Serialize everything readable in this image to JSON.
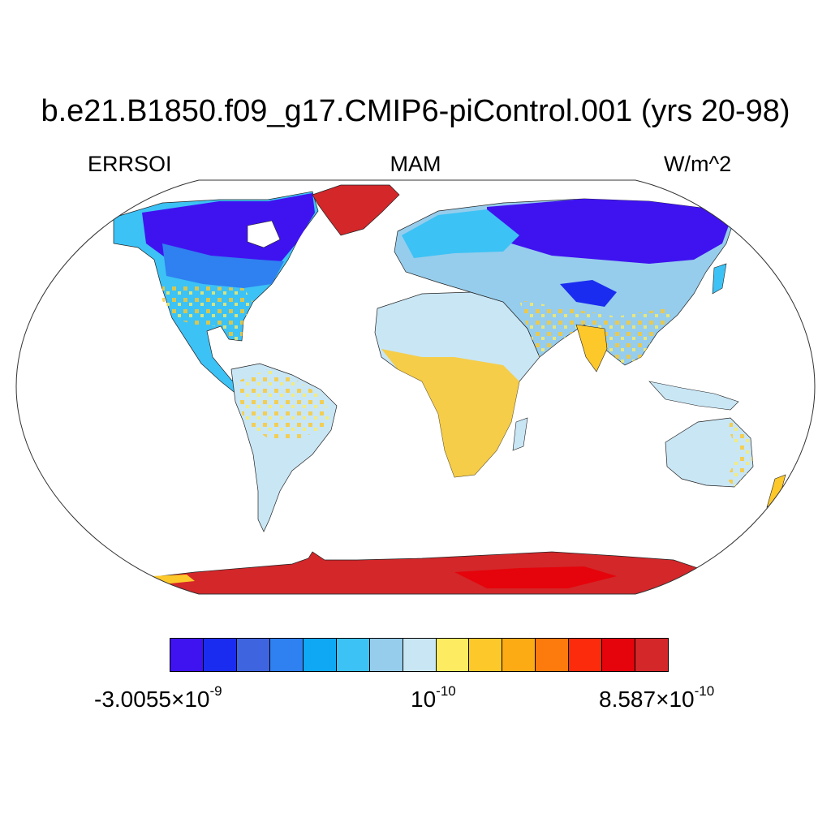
{
  "title": "b.e21.B1850.f09_g17.CMIP6-piControl.001 (yrs 20-98)",
  "variable": "ERRSOI",
  "season": "MAM",
  "units": "W/m^2",
  "colorbar": {
    "colors": [
      "#3f13f0",
      "#1a2cf0",
      "#3f64e0",
      "#2f80f0",
      "#0fa8f5",
      "#3cc2f5",
      "#96cdec",
      "#c9e6f5",
      "#fdec61",
      "#fdc82a",
      "#fdab14",
      "#fd7a0c",
      "#fb2b0b",
      "#e5040b",
      "#d3272a"
    ],
    "label_min_mantissa": "-3.0055",
    "label_min_exp": "-9",
    "label_mid_base": "10",
    "label_mid_exp": "-10",
    "label_max_mantissa": "8.587",
    "label_max_exp": "-10",
    "times": "×"
  },
  "map": {
    "projection": "Robinson",
    "ocean_color": "#ffffff",
    "land_regions": [
      {
        "name": "Greenland",
        "value_color": "#d3272a"
      },
      {
        "name": "Antarctica",
        "value_color": "#d3272a"
      },
      {
        "name": "Canada",
        "value_color": "#3f13f0"
      },
      {
        "name": "Siberia",
        "value_color": "#3f13f0"
      },
      {
        "name": "United States",
        "value_color": "#2f80f0"
      },
      {
        "name": "Europe",
        "value_color": "#3cc2f5"
      },
      {
        "name": "Sahara",
        "value_color": "#c9e6f5"
      },
      {
        "name": "Central Africa",
        "value_color": "#fdc82a"
      },
      {
        "name": "South America",
        "value_color": "#c9e6f5"
      },
      {
        "name": "India",
        "value_color": "#fdc82a"
      },
      {
        "name": "Australia",
        "value_color": "#c9e6f5"
      },
      {
        "name": "Tibetan Plateau",
        "value_color": "#1a2cf0"
      }
    ]
  }
}
